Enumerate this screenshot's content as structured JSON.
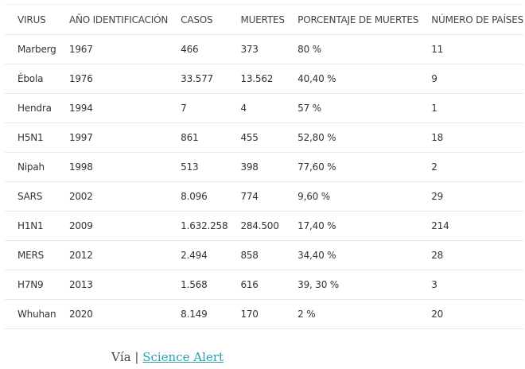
{
  "table": {
    "headers": [
      "VIRUS",
      "AÑO IDENTIFICACIÓN",
      "CASOS",
      "MUERTES",
      "PORCENTAJE DE MUERTES",
      "NÚMERO DE PAÍSES"
    ],
    "rows": [
      [
        "Marberg",
        "1967",
        "466",
        "373",
        "80 %",
        "11"
      ],
      [
        "Ébola",
        "1976",
        "33.577",
        "13.562",
        "40,40 %",
        "9"
      ],
      [
        "Hendra",
        "1994",
        "7",
        "4",
        "57 %",
        "1"
      ],
      [
        "H5N1",
        "1997",
        "861",
        "455",
        "52,80 %",
        "18"
      ],
      [
        "Nipah",
        "1998",
        "513",
        "398",
        "77,60 %",
        "2"
      ],
      [
        "SARS",
        "2002",
        "8.096",
        "774",
        "9,60 %",
        "29"
      ],
      [
        "H1N1",
        "2009",
        "1.632.258",
        "284.500",
        "17,40 %",
        "214"
      ],
      [
        "MERS",
        "2012",
        "2.494",
        "858",
        "34,40 %",
        "28"
      ],
      [
        "H7N9",
        "2013",
        "1.568",
        "616",
        "39, 30 %",
        "3"
      ],
      [
        "Whuhan",
        "2020",
        "8.149",
        "170",
        "2 %",
        "20"
      ]
    ]
  },
  "source": {
    "prefix": "Vía",
    "separator": "|",
    "link_text": "Science Alert"
  },
  "colors": {
    "link": "#2aa1a8",
    "text": "#333333"
  }
}
